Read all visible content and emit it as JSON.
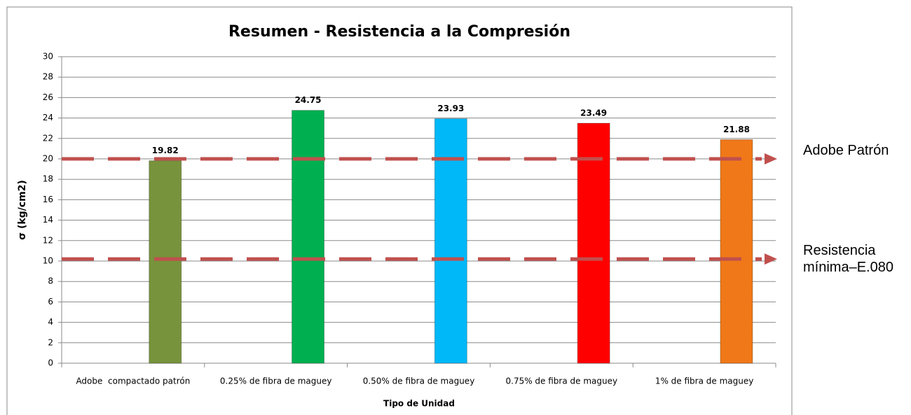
{
  "chart_data": {
    "type": "bar",
    "title": "Resumen - Resistencia a la Compresión",
    "x_label": "Tipo de Unidad",
    "y_label": "σ (kg/cm2)",
    "categories": [
      "Adobe  compactado patrón",
      "0.25% de fibra de maguey",
      "0.50% de fibra de maguey",
      "0.75% de fibra de maguey",
      "1% de fibra de maguey"
    ],
    "values": [
      19.82,
      24.75,
      23.93,
      23.49,
      21.88
    ],
    "colors": [
      "#77933c",
      "#00b050",
      "#00b8f8",
      "#ff0000",
      "#f07818"
    ],
    "ylim": [
      0,
      30
    ],
    "yticks": [
      0,
      2,
      4,
      6,
      8,
      10,
      12,
      14,
      16,
      18,
      20,
      22,
      24,
      26,
      28,
      30
    ],
    "grid": true,
    "reference_lines": [
      {
        "name": "Adobe Patrón",
        "value": 20,
        "color": "#c0504d"
      },
      {
        "name": "Resistencia mínima–E.080",
        "value": 10.2,
        "color": "#c0504d"
      }
    ]
  }
}
